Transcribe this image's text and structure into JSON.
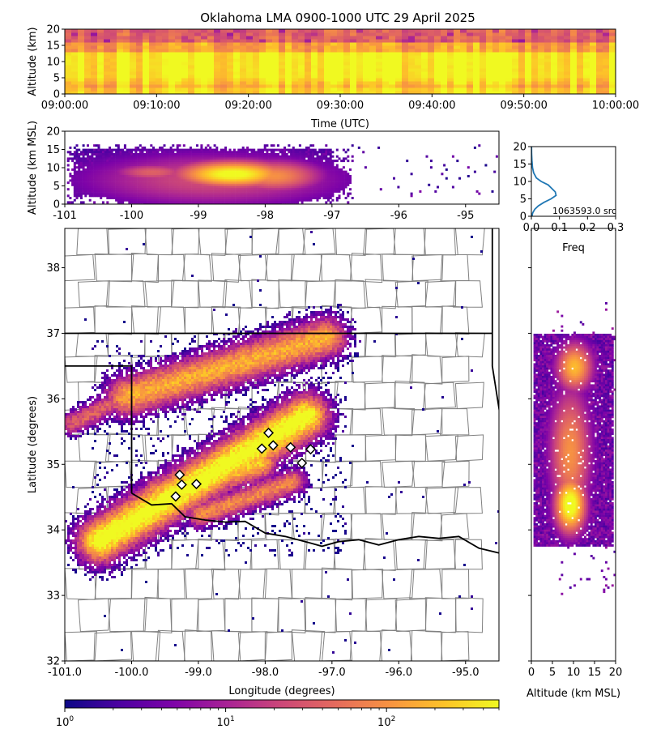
{
  "title": "Oklahoma LMA 0900-1000 UTC 29 April 2025",
  "colors": {
    "cmap": [
      "#0d0887",
      "#4c02a1",
      "#7e03a8",
      "#a92395",
      "#cc4778",
      "#e56b5d",
      "#f89441",
      "#fdc328",
      "#f0f921"
    ],
    "county_lines": "#808080",
    "state_lines": "#000000",
    "hist_line": "#1f77b4",
    "marker_fill": "#ffffff",
    "marker_edge": "#000000"
  },
  "chart_data": [
    {
      "id": "time_height",
      "type": "heatmap",
      "xlabel": "Time (UTC)",
      "ylabel": "Altitude (km)",
      "xticks": [
        "09:00:00",
        "09:10:00",
        "09:20:00",
        "09:30:00",
        "09:40:00",
        "09:50:00",
        "10:00:00"
      ],
      "yticks": [
        0,
        5,
        10,
        15,
        20
      ],
      "xlim": [
        0,
        60
      ],
      "ylim": [
        0,
        20
      ],
      "cores": [
        {
          "t": 30,
          "alt": 9.5,
          "w": 60,
          "h": 4.5,
          "level": 3.0
        }
      ]
    },
    {
      "id": "lon_alt",
      "type": "heatmap",
      "ylabel": "Altitude (km MSL)",
      "xticks": [
        -101,
        -100,
        -99,
        -98,
        -97,
        -96,
        -95
      ],
      "yticks": [
        0,
        5,
        10,
        15,
        20
      ],
      "xlim": [
        -101,
        -94.5
      ],
      "ylim": [
        0,
        20
      ],
      "cores": [
        {
          "lon": -98.5,
          "alt": 8.5,
          "w": 0.7,
          "h": 3.0,
          "level": 2.8
        },
        {
          "lon": -99.7,
          "alt": 9.0,
          "w": 0.5,
          "h": 2.0,
          "level": 1.6
        },
        {
          "lon": -97.9,
          "alt": 8.0,
          "w": 0.6,
          "h": 3.5,
          "level": 2.0
        },
        {
          "lon": -98.8,
          "alt": 7.0,
          "w": 1.6,
          "h": 6.0,
          "level": 1.4
        }
      ]
    },
    {
      "id": "alt_freq",
      "type": "line",
      "xlabel": "Freq",
      "xticks": [
        0.0,
        0.1,
        0.2,
        0.3
      ],
      "yticks": [
        0,
        5,
        10,
        15,
        20
      ],
      "xlim": [
        0,
        0.3
      ],
      "ylim": [
        0,
        20
      ],
      "annotation": "1063593.0 src",
      "x": [
        0.002,
        0.005,
        0.012,
        0.025,
        0.045,
        0.07,
        0.088,
        0.085,
        0.06,
        0.035,
        0.018,
        0.008,
        0.004,
        0.002,
        0.001,
        0.0005
      ],
      "y": [
        0,
        1,
        2,
        3,
        4,
        5,
        6,
        7,
        9,
        10,
        11,
        12.5,
        14,
        16,
        18,
        20
      ]
    },
    {
      "id": "plan_view",
      "type": "heatmap",
      "xlabel": "Longitude (degrees)",
      "ylabel": "Latitude (degrees)",
      "xticks": [
        "-101.0",
        "-100.0",
        "-99.0",
        "-98.0",
        "-97.0",
        "-96.0",
        "-95.0"
      ],
      "yticks": [
        32,
        33,
        34,
        35,
        36,
        37,
        38
      ],
      "xlim": [
        -101.0,
        -94.5
      ],
      "ylim": [
        32.0,
        38.6
      ],
      "bands": [
        {
          "x1": -100.1,
          "y1": 36.05,
          "x2": -97.1,
          "y2": 36.95,
          "width": 0.35,
          "level": 2.2
        },
        {
          "x1": -100.9,
          "y1": 35.65,
          "x2": -100.1,
          "y2": 36.05,
          "width": 0.2,
          "level": 1.6
        },
        {
          "x1": -100.5,
          "y1": 33.85,
          "x2": -97.4,
          "y2": 35.75,
          "width": 0.38,
          "level": 2.9
        },
        {
          "x1": -99.6,
          "y1": 34.55,
          "x2": -98.1,
          "y2": 35.05,
          "width": 0.3,
          "level": 2.4
        },
        {
          "x1": -99.0,
          "y1": 34.25,
          "x2": -97.6,
          "y2": 34.75,
          "width": 0.22,
          "level": 1.9
        }
      ],
      "markers": [
        {
          "lon": -97.95,
          "lat": 35.48
        },
        {
          "lon": -98.05,
          "lat": 35.24
        },
        {
          "lon": -97.88,
          "lat": 35.29
        },
        {
          "lon": -97.62,
          "lat": 35.26
        },
        {
          "lon": -97.45,
          "lat": 35.02
        },
        {
          "lon": -97.32,
          "lat": 35.23
        },
        {
          "lon": -99.28,
          "lat": 34.84
        },
        {
          "lon": -99.25,
          "lat": 34.69
        },
        {
          "lon": -99.34,
          "lat": 34.51
        },
        {
          "lon": -99.03,
          "lat": 34.7
        }
      ]
    },
    {
      "id": "alt_lat",
      "type": "heatmap",
      "xlabel": "Altitude (km MSL)",
      "xticks": [
        0,
        5,
        10,
        15,
        20
      ],
      "xlim": [
        0,
        20
      ],
      "ylim": [
        32.0,
        38.6
      ],
      "cores": [
        {
          "lat": 34.4,
          "alt": 9.0,
          "latw": 0.35,
          "altw": 3.0,
          "level": 2.9
        },
        {
          "lat": 35.2,
          "alt": 9.0,
          "latw": 0.8,
          "altw": 4.0,
          "level": 2.0
        },
        {
          "lat": 36.5,
          "alt": 10.0,
          "latw": 0.3,
          "altw": 3.5,
          "level": 2.3
        },
        {
          "lat": 35.6,
          "alt": 8.0,
          "latw": 0.2,
          "altw": 2.0,
          "level": 1.5
        }
      ]
    }
  ],
  "colorbar": {
    "scale": "log",
    "ticks": [
      {
        "base": "10",
        "exp": "0",
        "value": 1
      },
      {
        "base": "10",
        "exp": "1",
        "value": 10
      },
      {
        "base": "10",
        "exp": "2",
        "value": 100
      }
    ],
    "range": [
      1,
      500
    ]
  }
}
